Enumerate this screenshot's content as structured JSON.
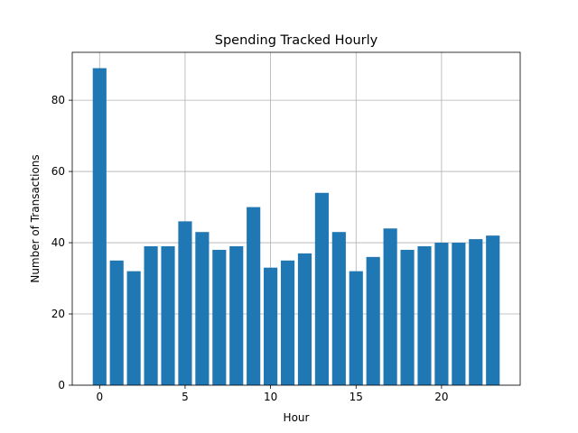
{
  "chart_data": {
    "type": "bar",
    "title": "Spending Tracked Hourly",
    "xlabel": "Hour",
    "ylabel": "Number of Transactions",
    "x": [
      0,
      1,
      2,
      3,
      4,
      5,
      6,
      7,
      8,
      9,
      10,
      11,
      12,
      13,
      14,
      15,
      16,
      17,
      18,
      19,
      20,
      21,
      22,
      23
    ],
    "values": [
      89,
      35,
      32,
      39,
      39,
      46,
      43,
      38,
      39,
      50,
      33,
      35,
      37,
      54,
      43,
      32,
      36,
      44,
      38,
      39,
      40,
      40,
      41,
      42
    ],
    "xlim": [
      -1.6,
      24.6
    ],
    "ylim": [
      0,
      93.45
    ],
    "xticks": [
      0,
      5,
      10,
      15,
      20
    ],
    "yticks": [
      0,
      20,
      40,
      60,
      80
    ],
    "bar_color": "#1f77b4",
    "grid": true,
    "legend": "none"
  }
}
